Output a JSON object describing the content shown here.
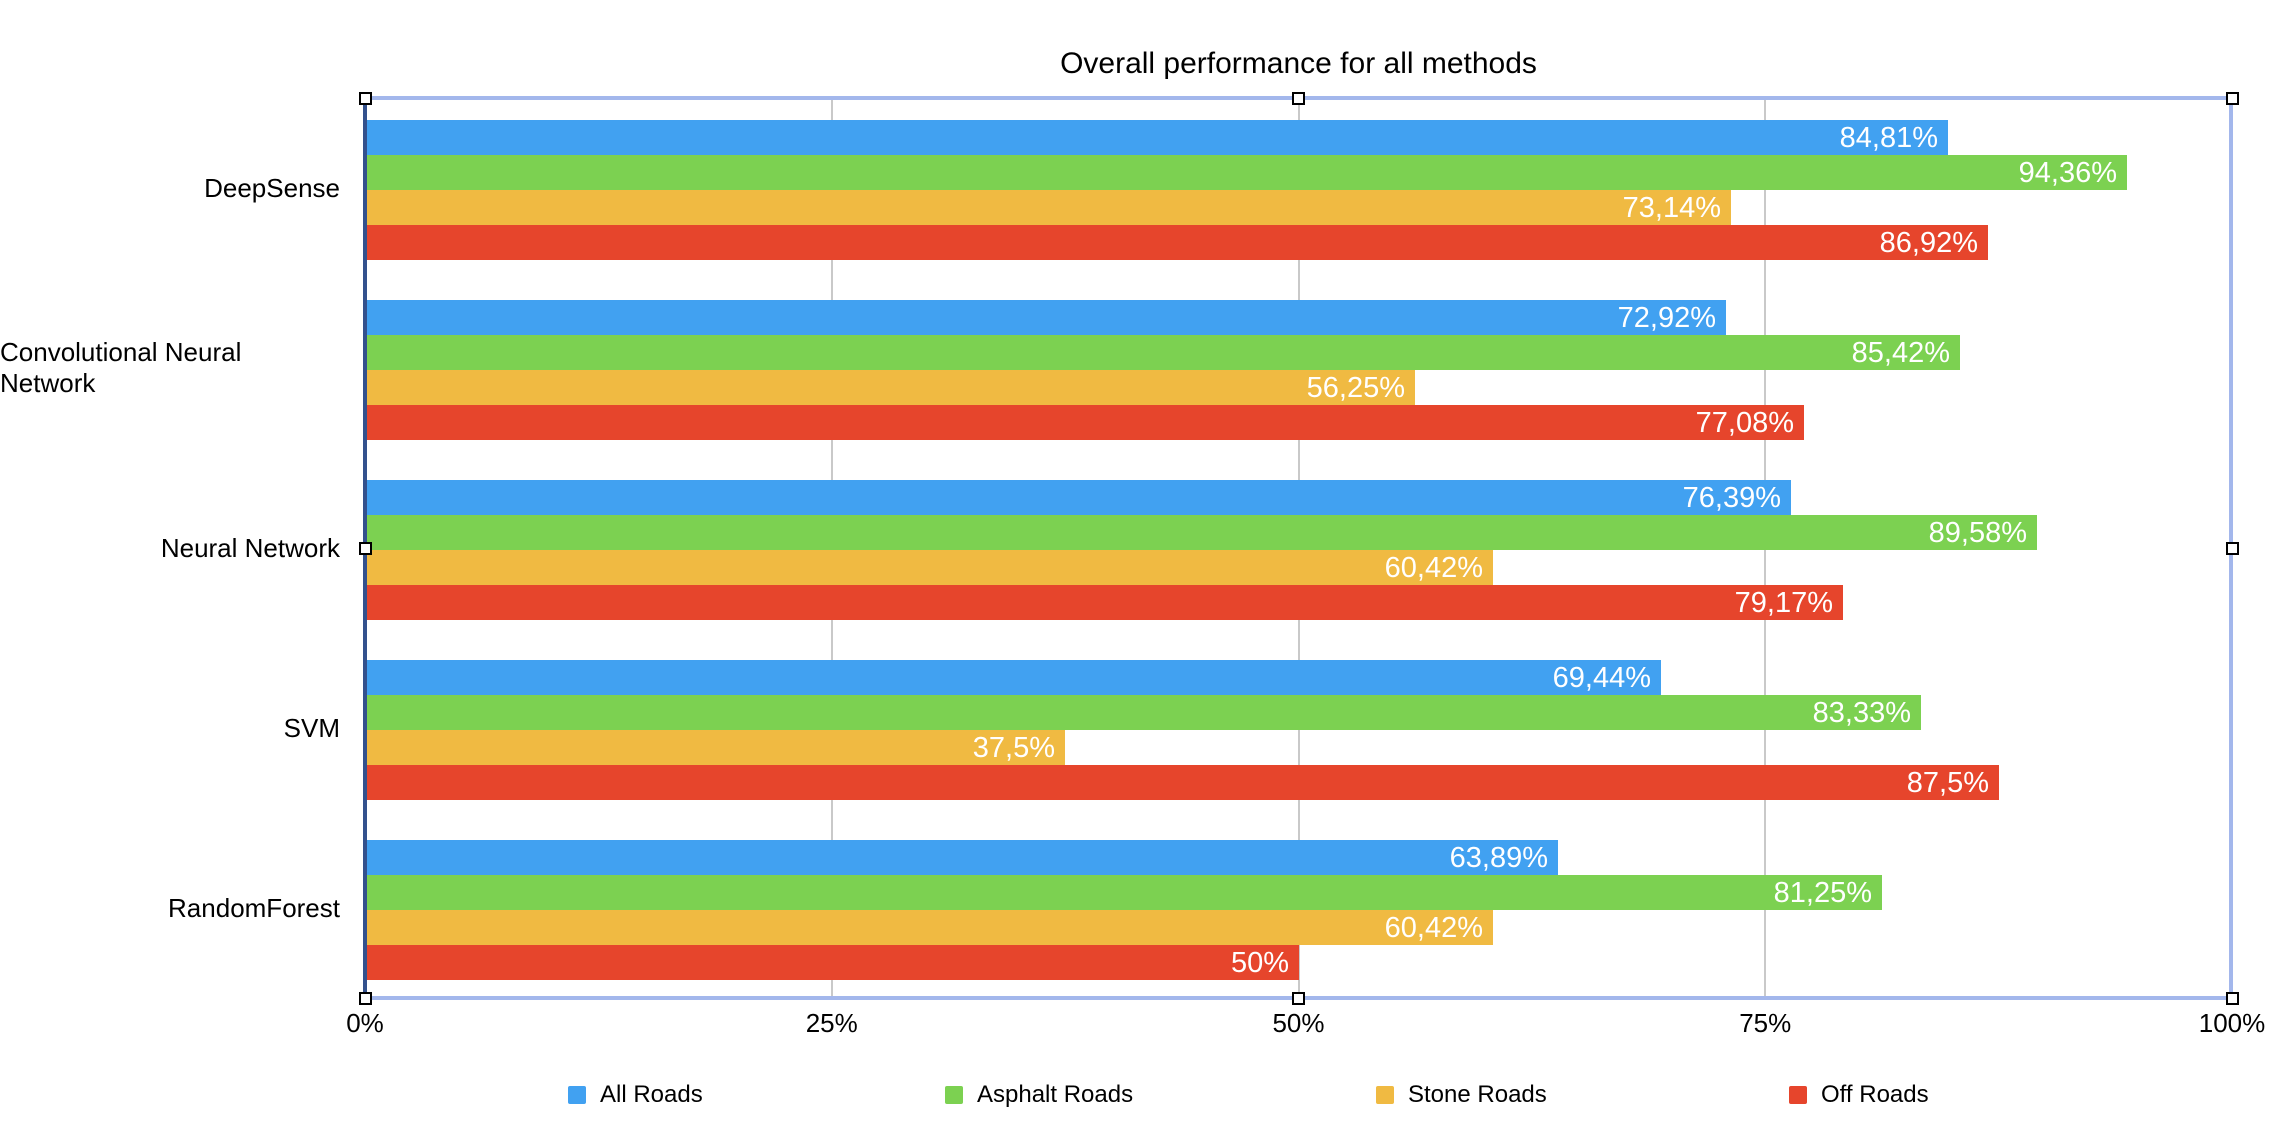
{
  "chart_data": {
    "type": "bar",
    "orientation": "horizontal",
    "title": "Overall performance for all methods",
    "xlabel": "",
    "ylabel": "",
    "xlim": [
      0,
      100
    ],
    "grid": "vertical gridlines at 25%, 50%, 75%",
    "legend_position": "bottom",
    "categories": [
      "DeepSense",
      "Convolutional Neural Network",
      "Neural Network",
      "SVM",
      "RandomForest"
    ],
    "series": [
      {
        "name": "All Roads",
        "color": "#41A1F1",
        "values": [
          84.81,
          72.92,
          76.39,
          69.44,
          63.89
        ],
        "labels": [
          "84,81%",
          "72,92%",
          "76,39%",
          "69,44%",
          "63,89%"
        ]
      },
      {
        "name": "Asphalt Roads",
        "color": "#7CD151",
        "values": [
          94.36,
          85.42,
          89.58,
          83.33,
          81.25
        ],
        "labels": [
          "94,36%",
          "85,42%",
          "89,58%",
          "83,33%",
          "81,25%"
        ]
      },
      {
        "name": "Stone Roads",
        "color": "#F0BA42",
        "values": [
          73.14,
          56.25,
          60.42,
          37.5,
          60.42
        ],
        "labels": [
          "73,14%",
          "56,25%",
          "60,42%",
          "37,5%",
          "60,42%"
        ]
      },
      {
        "name": "Off Roads",
        "color": "#E6452C",
        "values": [
          86.92,
          77.08,
          79.17,
          87.5,
          50
        ],
        "labels": [
          "86,92%",
          "77,08%",
          "79,17%",
          "87,5%",
          "50%"
        ]
      }
    ],
    "x_ticks": [
      {
        "label": "0%",
        "value": 0
      },
      {
        "label": "25%",
        "value": 25
      },
      {
        "label": "50%",
        "value": 50
      },
      {
        "label": "75%",
        "value": 75
      },
      {
        "label": "100%",
        "value": 100
      }
    ]
  },
  "selection": {
    "state": "chart-selected",
    "border_color": "#A3B7EC",
    "axis_line_color": "#33518D",
    "gridline_color": "#C9C9C9",
    "handle_count": 8
  }
}
